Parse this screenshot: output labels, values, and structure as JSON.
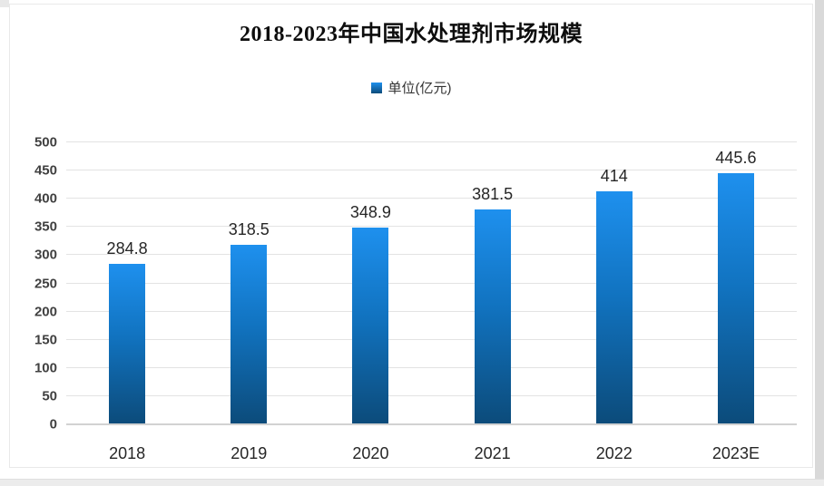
{
  "header": {
    "title": "2018-2023年中国水处理剂市场规模"
  },
  "legend": {
    "label": "单位(亿元)"
  },
  "colors": {
    "bar_top": "#1e90ee",
    "bar_bottom": "#0c4b7a",
    "gridline": "#e3e3e3",
    "axis_line": "#d2d2d2",
    "y_tick_text": "#404040",
    "x_tick_text": "#262626",
    "value_label_text": "#262626"
  },
  "chart_data": {
    "type": "bar",
    "title": "2018-2023年中国水处理剂市场规模",
    "series_name": "单位(亿元)",
    "categories": [
      "2018",
      "2019",
      "2020",
      "2021",
      "2022",
      "2023E"
    ],
    "values": [
      284.8,
      318.5,
      348.9,
      381.5,
      414,
      445.6
    ],
    "value_labels": [
      "284.8",
      "318.5",
      "348.9",
      "381.5",
      "414",
      "445.6"
    ],
    "xlabel": "",
    "ylabel": "",
    "ylim": [
      0,
      500
    ],
    "ytick_step": 50,
    "grid": true,
    "legend_position": "top",
    "data_labels": true
  }
}
